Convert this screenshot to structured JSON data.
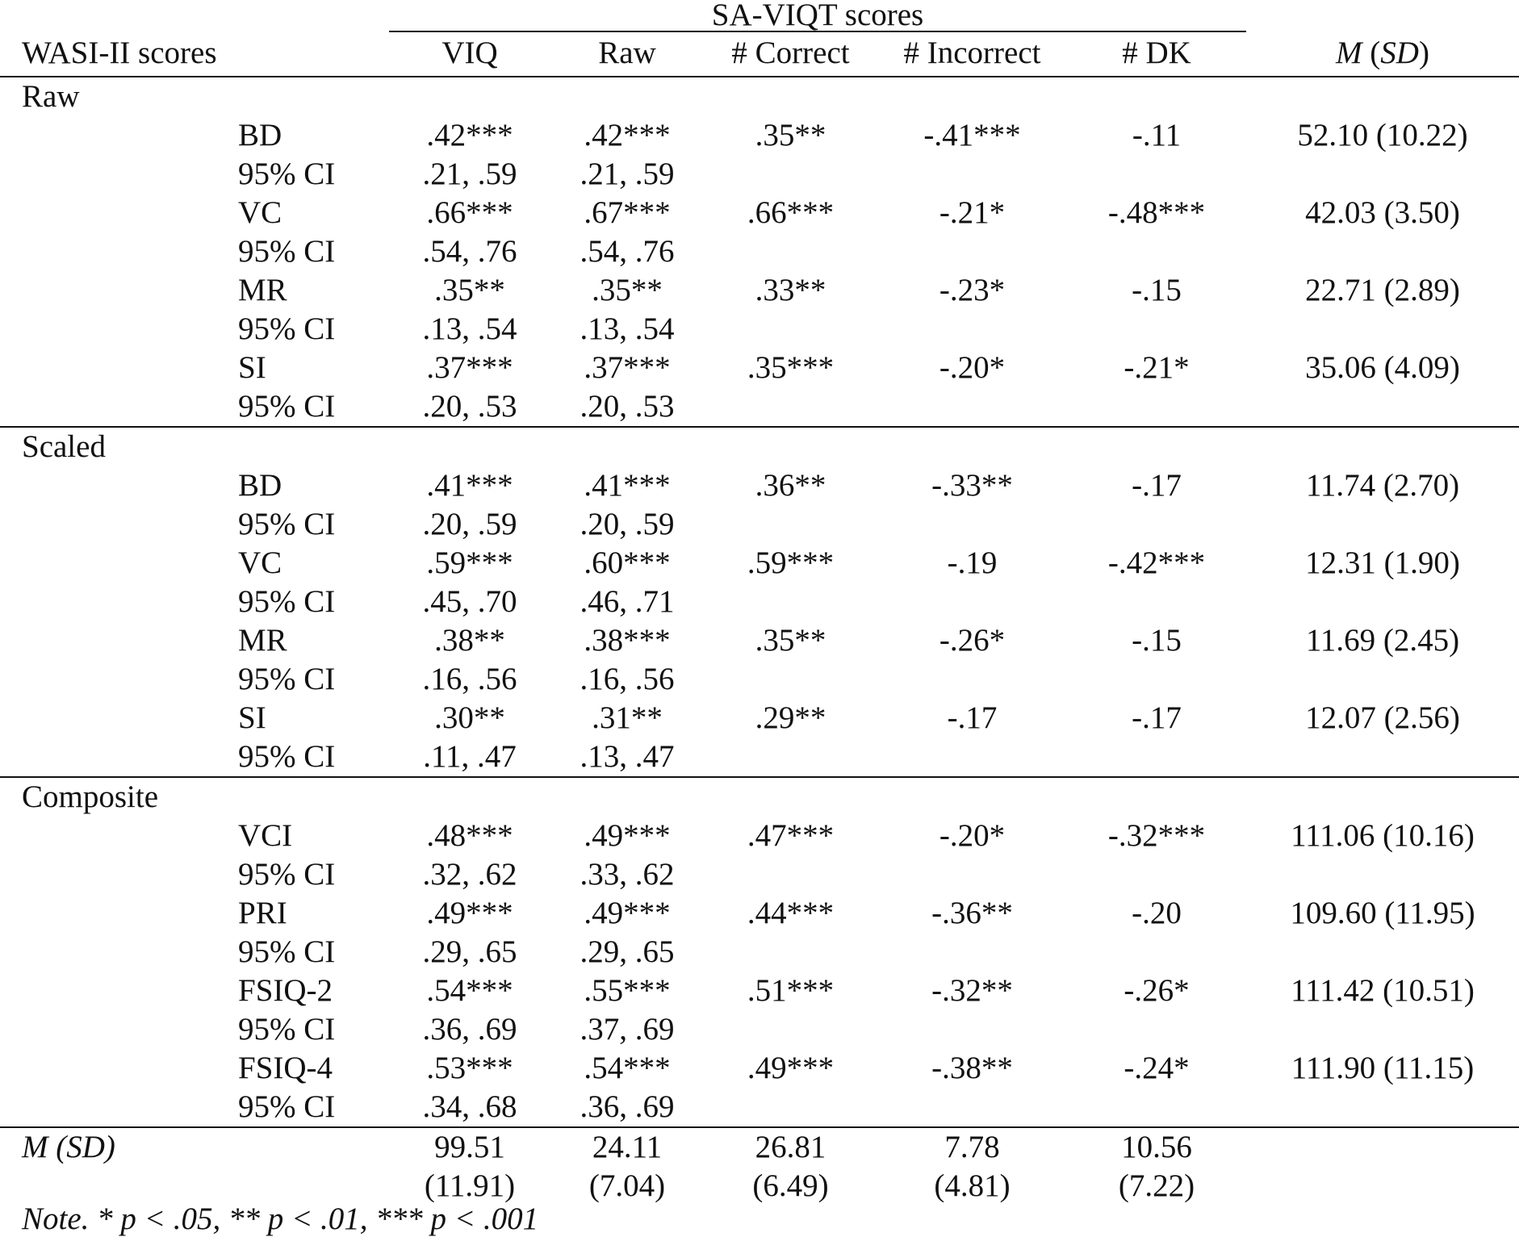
{
  "header": {
    "group_label": "SA-VIQT scores",
    "first_col": "WASI-II scores",
    "columns": [
      "VIQ",
      "Raw",
      "# Correct",
      "# Incorrect",
      "# DK"
    ],
    "msd_label_m": "M",
    "msd_label_sd": "SD"
  },
  "sections": [
    {
      "name": "Raw",
      "rows": [
        {
          "label": "BD",
          "viq": ".42***",
          "raw": ".42***",
          "correct": ".35**",
          "incorrect": "-.41***",
          "dk": "-.11",
          "msd": "52.10 (10.22)",
          "ci_label": "95% CI",
          "ci_viq": ".21, .59",
          "ci_raw": ".21, .59"
        },
        {
          "label": "VC",
          "viq": ".66***",
          "raw": ".67***",
          "correct": ".66***",
          "incorrect": "-.21*",
          "dk": "-.48***",
          "msd": "42.03 (3.50)",
          "ci_label": "95% CI",
          "ci_viq": ".54, .76",
          "ci_raw": ".54, .76"
        },
        {
          "label": "MR",
          "viq": ".35**",
          "raw": ".35**",
          "correct": ".33**",
          "incorrect": "-.23*",
          "dk": "-.15",
          "msd": "22.71 (2.89)",
          "ci_label": "95% CI",
          "ci_viq": ".13, .54",
          "ci_raw": ".13, .54"
        },
        {
          "label": "SI",
          "viq": ".37***",
          "raw": ".37***",
          "correct": ".35***",
          "incorrect": "-.20*",
          "dk": "-.21*",
          "msd": "35.06 (4.09)",
          "ci_label": "95% CI",
          "ci_viq": ".20, .53",
          "ci_raw": ".20, .53"
        }
      ]
    },
    {
      "name": "Scaled",
      "rows": [
        {
          "label": "BD",
          "viq": ".41***",
          "raw": ".41***",
          "correct": ".36**",
          "incorrect": "-.33**",
          "dk": "-.17",
          "msd": "11.74 (2.70)",
          "ci_label": "95% CI",
          "ci_viq": ".20, .59",
          "ci_raw": ".20, .59"
        },
        {
          "label": "VC",
          "viq": ".59***",
          "raw": ".60***",
          "correct": ".59***",
          "incorrect": "-.19",
          "dk": "-.42***",
          "msd": "12.31 (1.90)",
          "ci_label": "95% CI",
          "ci_viq": ".45, .70",
          "ci_raw": ".46, .71"
        },
        {
          "label": "MR",
          "viq": ".38**",
          "raw": ".38***",
          "correct": ".35**",
          "incorrect": "-.26*",
          "dk": "-.15",
          "msd": "11.69 (2.45)",
          "ci_label": "95% CI",
          "ci_viq": ".16, .56",
          "ci_raw": ".16, .56"
        },
        {
          "label": "SI",
          "viq": ".30**",
          "raw": ".31**",
          "correct": ".29**",
          "incorrect": "-.17",
          "dk": "-.17",
          "msd": "12.07 (2.56)",
          "ci_label": "95% CI",
          "ci_viq": ".11, .47",
          "ci_raw": ".13, .47"
        }
      ]
    },
    {
      "name": "Composite",
      "rows": [
        {
          "label": "VCI",
          "viq": ".48***",
          "raw": ".49***",
          "correct": ".47***",
          "incorrect": "-.20*",
          "dk": "-.32***",
          "msd": "111.06 (10.16)",
          "ci_label": "95% CI",
          "ci_viq": ".32, .62",
          "ci_raw": ".33, .62"
        },
        {
          "label": "PRI",
          "viq": ".49***",
          "raw": ".49***",
          "correct": ".44***",
          "incorrect": "-.36**",
          "dk": "-.20",
          "msd": "109.60 (11.95)",
          "ci_label": "95% CI",
          "ci_viq": ".29, .65",
          "ci_raw": ".29, .65"
        },
        {
          "label": "FSIQ-2",
          "viq": ".54***",
          "raw": ".55***",
          "correct": ".51***",
          "incorrect": "-.32**",
          "dk": "-.26*",
          "msd": "111.42 (10.51)",
          "ci_label": "95% CI",
          "ci_viq": ".36, .69",
          "ci_raw": ".37, .69"
        },
        {
          "label": "FSIQ-4",
          "viq": ".53***",
          "raw": ".54***",
          "correct": ".49***",
          "incorrect": "-.38**",
          "dk": "-.24*",
          "msd": "111.90 (11.15)",
          "ci_label": "95% CI",
          "ci_viq": ".34, .68",
          "ci_raw": ".36, .69"
        }
      ]
    }
  ],
  "footer": {
    "label": "M (SD)",
    "means": [
      "99.51",
      "24.11",
      "26.81",
      "7.78",
      "10.56"
    ],
    "sds": [
      "(11.91)",
      "(7.04)",
      "(6.49)",
      "(4.81)",
      "(7.22)"
    ]
  },
  "note": "Note. * p < .05, ** p < .01, *** p < .001"
}
